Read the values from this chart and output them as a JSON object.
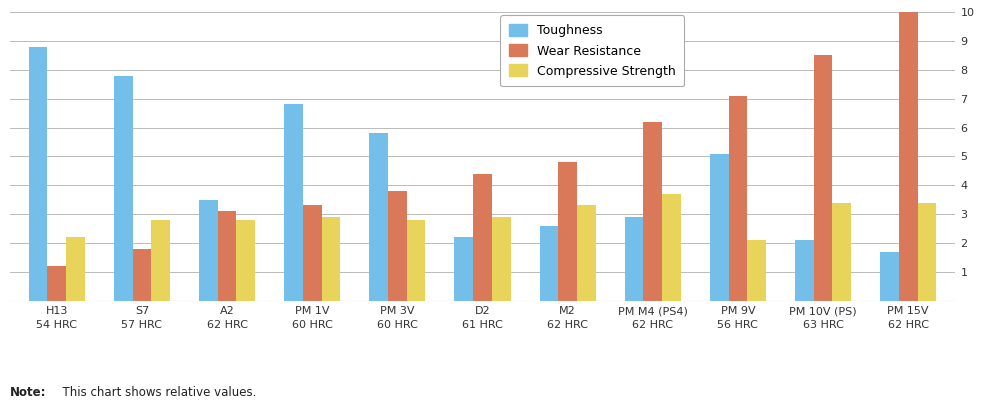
{
  "categories": [
    "H13\n54 HRC",
    "S7\n57 HRC",
    "A2\n62 HRC",
    "PM 1V\n60 HRC",
    "PM 3V\n60 HRC",
    "D2\n61 HRC",
    "M2\n62 HRC",
    "PM M4 (PS4)\n62 HRC",
    "PM 9V\n56 HRC",
    "PM 10V (PS)\n63 HRC",
    "PM 15V\n62 HRC"
  ],
  "toughness": [
    8.8,
    7.8,
    3.5,
    6.8,
    5.8,
    2.2,
    2.6,
    2.9,
    5.1,
    2.1,
    1.7
  ],
  "wear_resist": [
    1.2,
    1.8,
    3.1,
    3.3,
    3.8,
    4.4,
    4.8,
    6.2,
    7.1,
    8.5,
    10.0
  ],
  "comp_strength": [
    2.2,
    2.8,
    2.8,
    2.9,
    2.8,
    2.9,
    3.3,
    3.7,
    2.1,
    3.4,
    3.4
  ],
  "color_toughness": "#74BFEA",
  "color_wear": "#D9795A",
  "color_comp": "#E8D45A",
  "ylim": [
    0,
    10
  ],
  "yticks": [
    1,
    2,
    3,
    4,
    5,
    6,
    7,
    8,
    9,
    10
  ],
  "legend_labels": [
    "Toughness",
    "Wear Resistance",
    "Compressive Strength"
  ],
  "note_bold": "Note:",
  "note_regular": "  This chart shows relative values.",
  "bar_width": 0.22,
  "grid_color": "#BBBBBB",
  "background_color": "#FFFFFF"
}
